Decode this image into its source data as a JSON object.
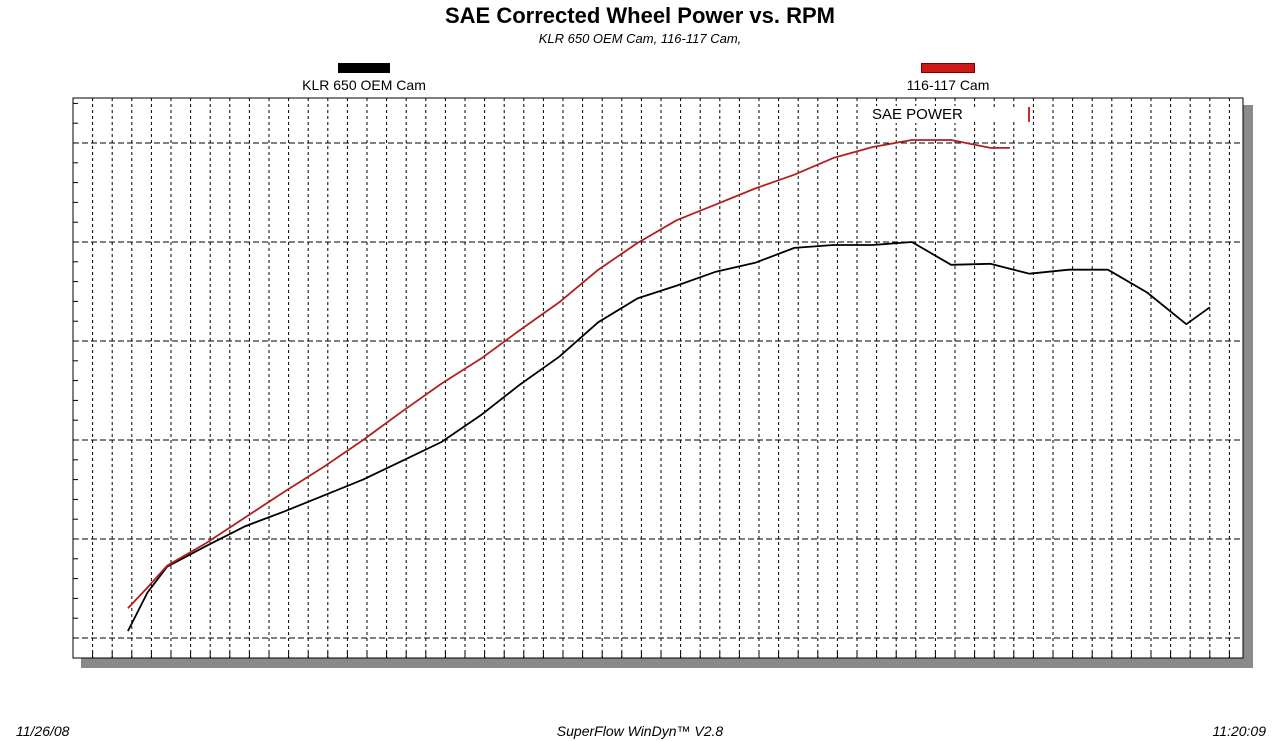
{
  "header": {
    "title": "SAE Corrected Wheel Power vs. RPM",
    "subtitle": "KLR 650 OEM Cam, 116-117 Cam,"
  },
  "annotation": {
    "label": "SAE POWER"
  },
  "footer": {
    "date": "11/26/08",
    "software": "SuperFlow WinDyn™ V2.8",
    "time": "11:20:09"
  },
  "colors": {
    "oem": "#000000",
    "cam": "#b02020",
    "grid": "#000000",
    "shadow": "#8a8a8a"
  },
  "chart_data": {
    "type": "line",
    "grid": true,
    "legend_position": "top",
    "xlim": [
      0,
      59
    ],
    "ylim": [
      0,
      5.2
    ],
    "series": [
      {
        "name": "KLR 650 OEM Cam",
        "color": "#000000",
        "x": [
          2.8,
          3.8,
          4.8,
          6.8,
          8.8,
          10.8,
          12.8,
          14.8,
          16.8,
          18.8,
          20.8,
          22.8,
          24.8,
          26.8,
          28.8,
          30.8,
          32.8,
          34.8,
          36.8,
          38.8,
          40.8,
          42.8,
          44.8,
          46.8,
          48.8,
          50.8,
          52.8,
          54.8,
          56.8,
          58.0
        ],
        "y": [
          0.07,
          0.46,
          0.72,
          0.93,
          1.13,
          1.28,
          1.44,
          1.6,
          1.79,
          1.98,
          2.25,
          2.56,
          2.84,
          3.19,
          3.43,
          3.56,
          3.7,
          3.79,
          3.94,
          3.97,
          3.97,
          4.0,
          3.77,
          3.78,
          3.68,
          3.72,
          3.72,
          3.49,
          3.17,
          3.34
        ]
      },
      {
        "name": "116-117 Cam",
        "color": "#b02020",
        "x": [
          2.8,
          3.8,
          4.8,
          6.8,
          8.8,
          10.8,
          12.8,
          14.8,
          16.8,
          18.8,
          20.8,
          22.8,
          24.8,
          26.8,
          28.8,
          30.8,
          32.8,
          34.8,
          36.8,
          38.8,
          40.8,
          42.8,
          44.8,
          46.8,
          47.8
        ],
        "y": [
          0.3,
          0.51,
          0.73,
          0.96,
          1.22,
          1.48,
          1.73,
          2.0,
          2.29,
          2.57,
          2.82,
          3.11,
          3.39,
          3.72,
          3.99,
          4.22,
          4.38,
          4.54,
          4.68,
          4.85,
          4.96,
          5.03,
          5.03,
          4.95,
          4.95
        ]
      }
    ]
  }
}
